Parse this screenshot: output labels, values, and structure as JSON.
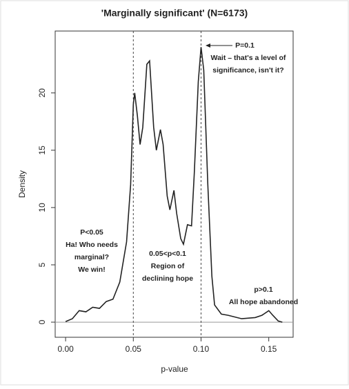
{
  "chart_data": {
    "type": "line",
    "title": "'Marginally significant' (N=6173)",
    "x_label": "p-value",
    "y_label": "Density",
    "series": [
      {
        "name": "density",
        "color": "#222222",
        "x": [
          0.0,
          0.005,
          0.01,
          0.015,
          0.02,
          0.025,
          0.03,
          0.035,
          0.04,
          0.045,
          0.048,
          0.05,
          0.051,
          0.053,
          0.055,
          0.057,
          0.06,
          0.062,
          0.065,
          0.067,
          0.07,
          0.072,
          0.075,
          0.077,
          0.08,
          0.082,
          0.085,
          0.087,
          0.09,
          0.093,
          0.095,
          0.098,
          0.1,
          0.102,
          0.105,
          0.108,
          0.11,
          0.115,
          0.12,
          0.13,
          0.14,
          0.145,
          0.15,
          0.153,
          0.157,
          0.16
        ],
        "values": [
          0.05,
          0.3,
          1.0,
          0.9,
          1.3,
          1.2,
          1.8,
          2.0,
          3.5,
          7,
          12,
          19,
          20,
          18,
          15.5,
          17,
          22.5,
          22.8,
          17,
          15,
          16.8,
          15.5,
          11,
          9.8,
          11.5,
          9.5,
          7.3,
          6.8,
          8.5,
          8.4,
          13,
          21,
          24,
          22,
          12,
          4,
          1.5,
          0.7,
          0.6,
          0.3,
          0.4,
          0.6,
          1.0,
          0.6,
          0.1,
          0
        ]
      }
    ],
    "xlim": [
      -0.0077,
      0.168
    ],
    "ylim": [
      -1.32,
      25.4
    ],
    "xticks": [
      {
        "value": 0,
        "label": "0.00"
      },
      0.05,
      {
        "value": 0.1,
        "label": "0.10"
      },
      0.15
    ],
    "yticks": [
      0,
      5,
      10,
      15,
      20
    ],
    "vlines": [
      0.05,
      0.1
    ],
    "annotations": [
      {
        "lines": [
          "P<0.05",
          "Ha! Who needs",
          "marginal?",
          "We win!"
        ]
      },
      {
        "lines": [
          "0.05<p<0.1",
          "Region of",
          "declining hope"
        ]
      },
      {
        "lines": [
          "p>0.1",
          "All hope abandoned"
        ]
      },
      {
        "lines": [
          "P=0.1",
          "Wait – that's a level of",
          "significance, isn't it?"
        ]
      }
    ]
  }
}
